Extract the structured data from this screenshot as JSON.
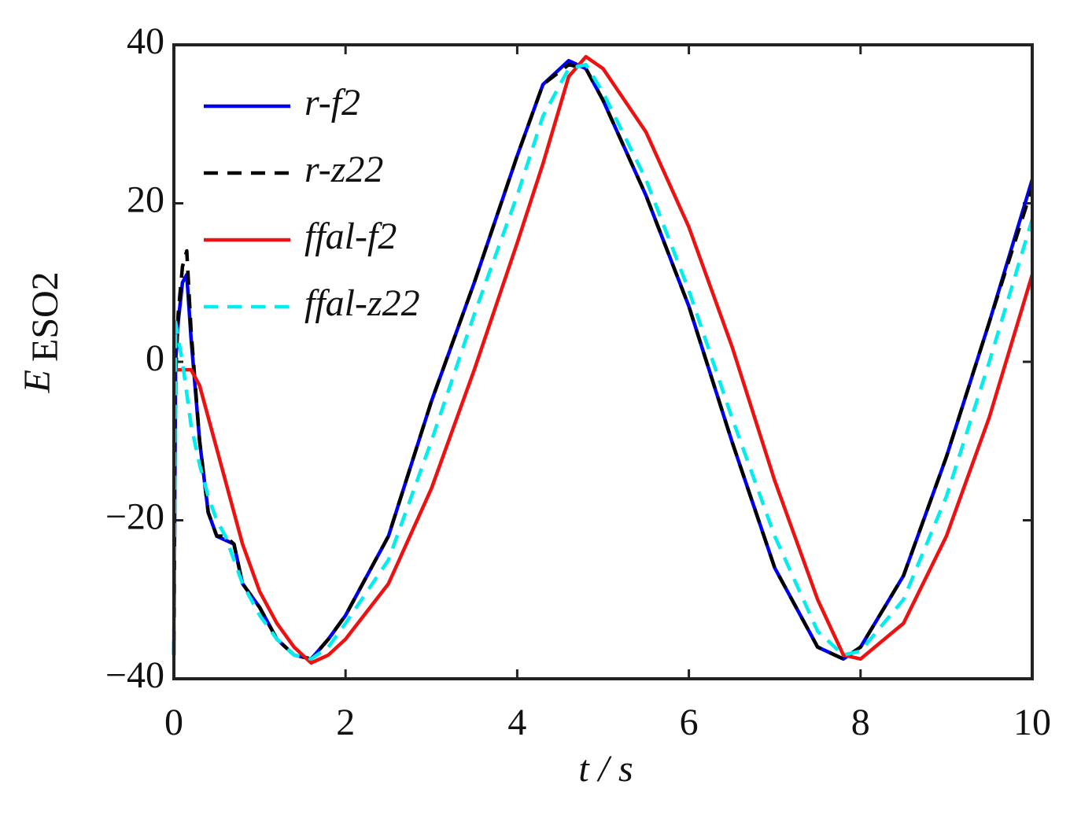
{
  "chart_data": {
    "type": "line",
    "x_label": "t / s",
    "y_label": "E",
    "y_label_subscript": "ESO2",
    "x": [
      0,
      0.02,
      0.05,
      0.1,
      0.15,
      0.2,
      0.3,
      0.4,
      0.5,
      0.6,
      0.7,
      0.8,
      1.0,
      1.2,
      1.4,
      1.6,
      1.8,
      2.0,
      2.5,
      3.0,
      3.5,
      4.0,
      4.3,
      4.6,
      4.8,
      5.0,
      5.5,
      6.0,
      6.5,
      7.0,
      7.5,
      7.8,
      8.0,
      8.5,
      9.0,
      9.5,
      10.0
    ],
    "series": [
      {
        "name": "r-f2",
        "color": "#0000ee",
        "dashed": false,
        "values": [
          -37,
          0,
          5,
          10,
          11,
          3,
          -10,
          -19,
          -22,
          -22.5,
          -23,
          -28,
          -31,
          -35,
          -37,
          -37.5,
          -35,
          -32,
          -22,
          -5,
          10,
          26,
          35,
          38,
          37,
          33,
          21,
          7,
          -10,
          -26,
          -36,
          -37.5,
          -36,
          -27,
          -12,
          5,
          23
        ]
      },
      {
        "name": "r-z22",
        "color": "#000000",
        "dashed": true,
        "values": [
          -37,
          -2,
          6,
          12,
          14,
          4,
          -10,
          -19,
          -22,
          -22,
          -23,
          -28,
          -31,
          -35,
          -37,
          -37.5,
          -35,
          -32,
          -22,
          -5,
          10,
          26,
          35,
          37.5,
          37,
          33,
          21,
          7,
          -10,
          -26,
          -36,
          -37.5,
          -36,
          -27,
          -12,
          5,
          22
        ]
      },
      {
        "name": "ffal-f2",
        "color": "#ee1111",
        "dashed": false,
        "values": [
          0,
          -1,
          -1,
          -1,
          -1,
          -1,
          -3,
          -7,
          -11,
          -15,
          -19,
          -23,
          -29,
          -33,
          -36,
          -38,
          -37,
          -35,
          -28,
          -16,
          -1,
          15,
          25,
          36,
          38.5,
          37,
          29,
          17,
          2,
          -15,
          -30,
          -37,
          -37.5,
          -33,
          -22,
          -7,
          11
        ]
      },
      {
        "name": "ffal-z22",
        "color": "#00eeee",
        "dashed": true,
        "values": [
          -37,
          5,
          3,
          0,
          -4,
          -8,
          -13,
          -17,
          -20,
          -22,
          -25,
          -28,
          -32,
          -35,
          -37,
          -37.5,
          -36,
          -33,
          -25,
          -10,
          6,
          21,
          31,
          37,
          37.5,
          34,
          23,
          9,
          -7,
          -22,
          -34,
          -37,
          -36.5,
          -30,
          -17,
          0,
          18
        ]
      }
    ],
    "xlim": [
      0,
      10
    ],
    "xticks": [
      0,
      2,
      4,
      6,
      8,
      10
    ],
    "ylim": [
      -40,
      40
    ],
    "yticks": [
      {
        "value": -40,
        "label": "−40"
      },
      {
        "value": -20,
        "label": "−20"
      },
      0,
      20,
      40
    ],
    "legend": "upper left"
  }
}
